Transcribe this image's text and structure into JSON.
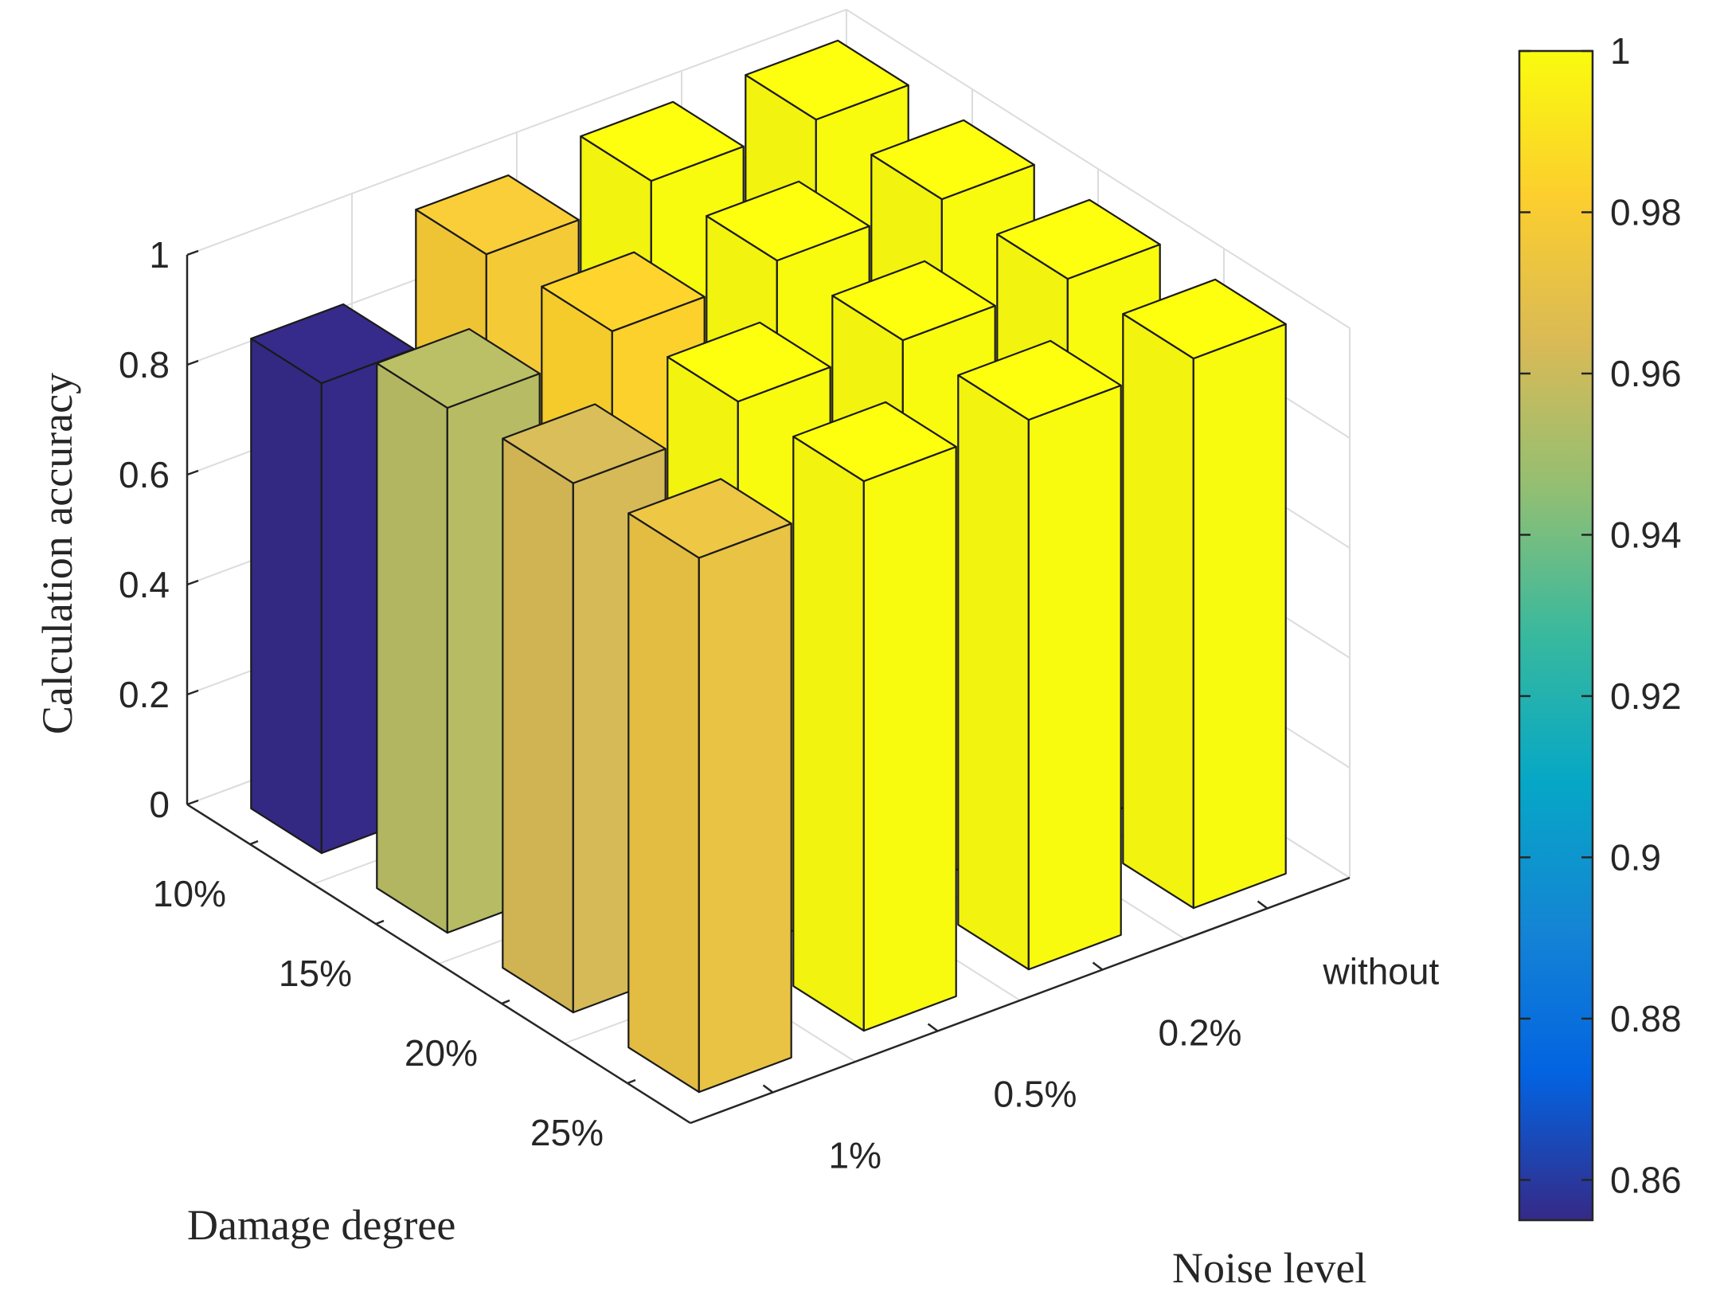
{
  "chart_data": {
    "type": "bar3d",
    "title": "",
    "x_axis": {
      "label": "Damage degree",
      "categories": [
        "10%",
        "15%",
        "20%",
        "25%"
      ]
    },
    "y_axis": {
      "label": "Noise level",
      "categories": [
        "1%",
        "0.5%",
        "0.2%",
        "without"
      ]
    },
    "z_axis": {
      "label": "Calculation accuracy",
      "ticks": [
        "0",
        "0.2",
        "0.4",
        "0.6",
        "0.8",
        "1"
      ],
      "zlim": [
        0,
        1
      ]
    },
    "values": [
      [
        0.855,
        0.978,
        1.0,
        1.0
      ],
      [
        0.955,
        0.983,
        1.0,
        1.0
      ],
      [
        0.963,
        1.0,
        1.0,
        1.0
      ],
      [
        0.972,
        1.0,
        1.0,
        1.0
      ]
    ],
    "colorbar": {
      "range": [
        0.855,
        1.0
      ],
      "ticks": [
        "0.86",
        "0.88",
        "0.9",
        "0.92",
        "0.94",
        "0.96",
        "0.98",
        "1"
      ],
      "colormap": "parula"
    },
    "grid": true
  }
}
